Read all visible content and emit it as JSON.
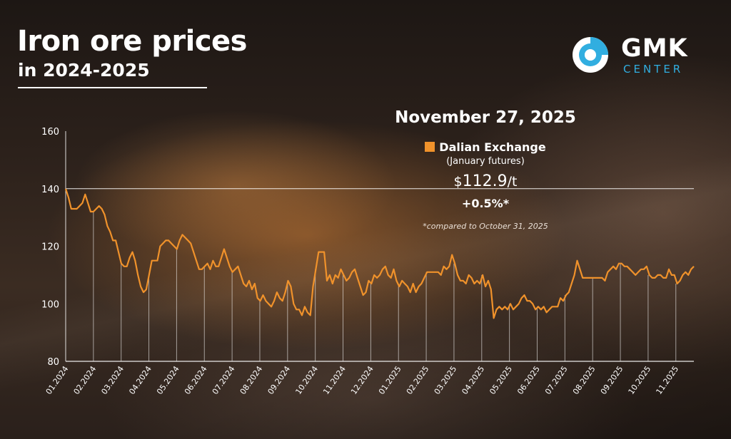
{
  "header": {
    "title": "Iron ore prices",
    "subtitle": "in 2024-2025"
  },
  "logo": {
    "name": "GMK",
    "sub": "CENTER",
    "accent_color": "#31aee0"
  },
  "info": {
    "date": "November 27, 2025",
    "series_name": "Dalian Exchange",
    "series_note": "(January futures)",
    "price_currency": "$",
    "price_value": "112.9",
    "price_unit": "/t",
    "change": "+0.5%*",
    "footnote": "*compared to October 31, 2025"
  },
  "chart_data": {
    "type": "line",
    "title": "Iron ore prices",
    "subtitle": "in 2024-2025",
    "xlabel": "",
    "ylabel": "",
    "ylim": [
      80,
      160
    ],
    "yticks": [
      80,
      100,
      120,
      140,
      160
    ],
    "grid": true,
    "line_color": "#f0922b",
    "x_ticks": [
      "01.2024",
      "02.2024",
      "03.2024",
      "04.2024",
      "05.2024",
      "06.2024",
      "07.2024",
      "08.2024",
      "09.2024",
      "10.2024",
      "11.2024",
      "12.2024",
      "01.2025",
      "02.2025",
      "03.2025",
      "04.2025",
      "05.2025",
      "06.2025",
      "07.2025",
      "08.2025",
      "09.2025",
      "10.2025",
      "11.2025"
    ],
    "series": [
      {
        "name": "Dalian Exchange",
        "values": [
          140,
          137,
          133,
          133,
          133,
          134,
          135,
          138,
          135,
          132,
          132,
          133,
          134,
          133,
          131,
          127,
          125,
          122,
          122,
          118,
          114,
          113,
          113,
          116,
          118,
          115,
          110,
          106,
          104,
          105,
          110,
          115,
          115,
          115,
          120,
          121,
          122,
          122,
          121,
          120,
          119,
          122,
          124,
          123,
          122,
          121,
          118,
          115,
          112,
          112,
          113,
          114,
          112,
          115,
          113,
          113,
          116,
          119,
          116,
          113,
          111,
          112,
          113,
          110,
          107,
          106,
          108,
          105,
          107,
          102,
          101,
          103,
          101,
          100,
          99,
          101,
          104,
          102,
          101,
          104,
          108,
          106,
          100,
          98,
          98,
          96,
          99,
          97,
          96,
          106,
          112,
          118,
          118,
          118,
          108,
          110,
          107,
          110,
          109,
          112,
          110,
          108,
          109,
          111,
          112,
          109,
          106,
          103,
          104,
          108,
          107,
          110,
          109,
          110,
          112,
          113,
          110,
          109,
          112,
          108,
          106,
          108,
          107,
          106,
          104,
          107,
          104,
          106,
          107,
          109,
          111,
          111,
          111,
          111,
          111,
          110,
          113,
          112,
          113,
          117,
          114,
          110,
          108,
          108,
          107,
          110,
          109,
          107,
          108,
          107,
          110,
          106,
          108,
          105,
          95,
          98,
          99,
          98,
          99,
          98,
          100,
          98,
          99,
          100,
          102,
          103,
          101,
          101,
          100,
          98,
          99,
          98,
          99,
          97,
          98,
          99,
          99,
          99,
          102,
          101,
          103,
          104,
          107,
          110,
          115,
          112,
          109,
          109,
          109,
          109,
          109,
          109,
          109,
          109,
          108,
          111,
          112,
          113,
          112,
          114,
          114,
          113,
          113,
          112,
          111,
          110,
          111,
          112,
          112,
          113,
          110,
          109,
          109,
          110,
          110,
          109,
          109,
          112,
          110,
          110,
          107,
          108,
          110,
          111,
          110,
          112,
          113
        ]
      }
    ]
  }
}
